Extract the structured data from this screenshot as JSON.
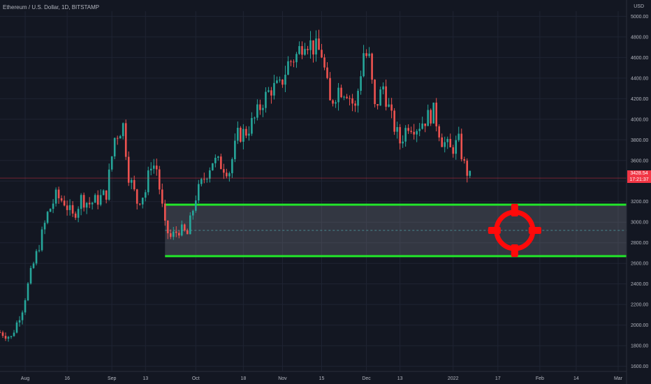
{
  "header": {
    "title": "Ethereum / U.S. Dollar, 1D, BITSTAMP",
    "currency": "USD"
  },
  "price_tag": {
    "price": "3428.54",
    "countdown": "17:21:37"
  },
  "colors": {
    "background": "#131722",
    "up": "#26a69a",
    "down": "#ef5350",
    "zone_border": "#22e52a",
    "target": "#ff0a0a",
    "price_line": "#f23645"
  },
  "icons": {
    "target": "crosshair-target-icon"
  },
  "chart_data": {
    "type": "candlestick",
    "title": "Ethereum / U.S. Dollar, 1D, BITSTAMP",
    "y_unit": "USD",
    "ylim": [
      1550,
      5050
    ],
    "y_ticks": [
      "5000.00",
      "4800.00",
      "4600.00",
      "4400.00",
      "4200.00",
      "4000.00",
      "3800.00",
      "3600.00",
      "3400.00",
      "3200.00",
      "3000.00",
      "2800.00",
      "2600.00",
      "2400.00",
      "2200.00",
      "2000.00",
      "1800.00",
      "1600.00"
    ],
    "x_range": [
      "2021-07-23",
      "2022-03-04"
    ],
    "x_ticks": [
      {
        "date": "2021-08-01",
        "label": "Aug"
      },
      {
        "date": "2021-08-16",
        "label": "16"
      },
      {
        "date": "2021-09-01",
        "label": "Sep"
      },
      {
        "date": "2021-09-13",
        "label": "13"
      },
      {
        "date": "2021-10-01",
        "label": "Oct"
      },
      {
        "date": "2021-10-18",
        "label": "18"
      },
      {
        "date": "2021-11-01",
        "label": "Nov"
      },
      {
        "date": "2021-11-15",
        "label": "15"
      },
      {
        "date": "2021-12-01",
        "label": "Dec"
      },
      {
        "date": "2021-12-13",
        "label": "13"
      },
      {
        "date": "2022-01-01",
        "label": "2022"
      },
      {
        "date": "2022-01-17",
        "label": "17"
      },
      {
        "date": "2022-02-01",
        "label": "Feb"
      },
      {
        "date": "2022-02-14",
        "label": "14"
      },
      {
        "date": "2022-03-01",
        "label": "Mar"
      }
    ],
    "grid": true,
    "last_price": 3428.54,
    "closes": [
      [
        "2021-07-23",
        1930
      ],
      [
        "2021-07-27",
        1880
      ],
      [
        "2021-07-31",
        2160
      ],
      [
        "2021-08-03",
        2500
      ],
      [
        "2021-08-06",
        2780
      ],
      [
        "2021-08-09",
        3080
      ],
      [
        "2021-08-12",
        3250
      ],
      [
        "2021-08-15",
        3200
      ],
      [
        "2021-08-18",
        3050
      ],
      [
        "2021-08-21",
        3230
      ],
      [
        "2021-08-24",
        3180
      ],
      [
        "2021-08-27",
        3220
      ],
      [
        "2021-08-30",
        3280
      ],
      [
        "2021-09-02",
        3820
      ],
      [
        "2021-09-05",
        3940
      ],
      [
        "2021-09-07",
        3460
      ],
      [
        "2021-09-10",
        3200
      ],
      [
        "2021-09-13",
        3300
      ],
      [
        "2021-09-15",
        3580
      ],
      [
        "2021-09-17",
        3520
      ],
      [
        "2021-09-20",
        2950
      ],
      [
        "2021-09-22",
        2850
      ],
      [
        "2021-09-25",
        2930
      ],
      [
        "2021-09-28",
        2880
      ],
      [
        "2021-10-01",
        3250
      ],
      [
        "2021-10-04",
        3430
      ],
      [
        "2021-10-07",
        3600
      ],
      [
        "2021-10-10",
        3560
      ],
      [
        "2021-10-13",
        3500
      ],
      [
        "2021-10-16",
        3840
      ],
      [
        "2021-10-19",
        3880
      ],
      [
        "2021-10-22",
        4000
      ],
      [
        "2021-10-25",
        4180
      ],
      [
        "2021-10-28",
        4300
      ],
      [
        "2021-10-31",
        4310
      ],
      [
        "2021-11-03",
        4540
      ],
      [
        "2021-11-06",
        4620
      ],
      [
        "2021-11-09",
        4790
      ],
      [
        "2021-11-12",
        4700
      ],
      [
        "2021-11-15",
        4640
      ],
      [
        "2021-11-18",
        4150
      ],
      [
        "2021-11-21",
        4300
      ],
      [
        "2021-11-24",
        4280
      ],
      [
        "2021-11-27",
        4100
      ],
      [
        "2021-11-30",
        4650
      ],
      [
        "2021-12-02",
        4580
      ],
      [
        "2021-12-04",
        4100
      ],
      [
        "2021-12-07",
        4320
      ],
      [
        "2021-12-10",
        4000
      ],
      [
        "2021-12-13",
        3780
      ],
      [
        "2021-12-16",
        3960
      ],
      [
        "2021-12-19",
        3930
      ],
      [
        "2021-12-22",
        4000
      ],
      [
        "2021-12-25",
        4070
      ],
      [
        "2021-12-28",
        3800
      ],
      [
        "2021-12-31",
        3700
      ],
      [
        "2022-01-03",
        3780
      ],
      [
        "2022-01-05",
        3550
      ],
      [
        "2022-01-07",
        3430
      ]
    ],
    "annotations": [
      {
        "type": "zone",
        "from_date": "2021-09-20",
        "top": 3170,
        "bottom": 2670,
        "mid": 2920
      },
      {
        "type": "target-icon",
        "date": "2022-01-23",
        "price": 2920
      },
      {
        "type": "price-line",
        "price": 3428.54
      }
    ]
  }
}
